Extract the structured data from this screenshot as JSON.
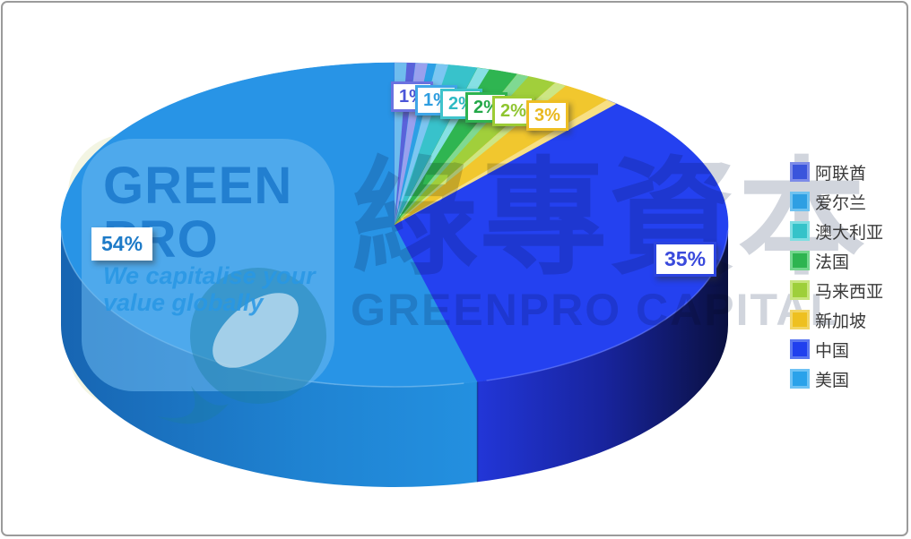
{
  "chart_data": {
    "type": "pie",
    "style": "3d-pie",
    "title": "",
    "unit": "%",
    "start_angle_deg": 0,
    "direction": "clockwise",
    "legend_position": "right",
    "categories": [
      "阿联酋",
      "爱尔兰",
      "澳大利亚",
      "法国",
      "马来西亚",
      "新加坡",
      "中国",
      "美国"
    ],
    "values": [
      1,
      1,
      2,
      2,
      2,
      3,
      35,
      54
    ],
    "labels": [
      "1%",
      "1%",
      "2%",
      "2%",
      "2%",
      "3%",
      "35%",
      "54%"
    ],
    "slices": [
      {
        "name": "阿联酋",
        "value": 1,
        "label": "1%",
        "color": "#5A62DA",
        "light": "#99A0EE",
        "label_text_color": "#4A55D8",
        "label_border_color": "#6A72E0"
      },
      {
        "name": "爱尔兰",
        "value": 1,
        "label": "1%",
        "color": "#2D9FE5",
        "light": "#7CC6F2",
        "label_text_color": "#2D9DE0",
        "label_border_color": "#3FA6E8"
      },
      {
        "name": "澳大利亚",
        "value": 2,
        "label": "2%",
        "color": "#38C2CB",
        "light": "#86E0E4",
        "label_text_color": "#2FBAC4",
        "label_border_color": "#3FC4CC"
      },
      {
        "name": "法国",
        "value": 2,
        "label": "2%",
        "color": "#2FB551",
        "light": "#7FD992",
        "label_text_color": "#23A848",
        "label_border_color": "#2EB450"
      },
      {
        "name": "马来西亚",
        "value": 2,
        "label": "2%",
        "color": "#A1CF3B",
        "light": "#CCE684",
        "label_text_color": "#8FC52F",
        "label_border_color": "#9CCB35"
      },
      {
        "name": "新加坡",
        "value": 3,
        "label": "3%",
        "color": "#F1C72E",
        "light": "#F8E083",
        "label_text_color": "#E9B81E",
        "label_border_color": "#EEBE24"
      },
      {
        "name": "中国",
        "value": 35,
        "label": "35%",
        "color": "#2441F0",
        "light": "#5A77F0",
        "label_text_color": "#3A4ADC",
        "label_border_color": "#2B44E0"
      },
      {
        "name": "美国",
        "value": 54,
        "label": "54%",
        "color": "#2894E6",
        "light": "#6FBCEE",
        "label_text_color": "#1E7BC8",
        "label_border_color": "#FFFFFF"
      }
    ]
  },
  "legend": {
    "items": [
      {
        "label": "阿联酋",
        "color": "#3A55DC",
        "light": "#7D8BE8"
      },
      {
        "label": "爱尔兰",
        "color": "#2E9FE3",
        "light": "#6FC2F0"
      },
      {
        "label": "澳大利亚",
        "color": "#35C3C9",
        "light": "#7FDEE2"
      },
      {
        "label": "法国",
        "color": "#2EB450",
        "light": "#74D68D"
      },
      {
        "label": "马来西亚",
        "color": "#9ECF3A",
        "light": "#C8E57E"
      },
      {
        "label": "新加坡",
        "color": "#EEC020",
        "light": "#F2D565"
      },
      {
        "label": "中国",
        "color": "#2040EE",
        "light": "#5A77F0"
      },
      {
        "label": "美国",
        "color": "#2AA2EA",
        "light": "#6EC2F4"
      }
    ]
  },
  "watermarks": {
    "logo": {
      "line1": "GREEN",
      "line2": "PRO",
      "tagline1": "We capitalise your",
      "tagline2": "value globally"
    },
    "center": {
      "cjk": "綠專資本",
      "latin": "GREENPRO CAPITAL"
    }
  },
  "colors": {
    "frame_border": "#9b9b9b",
    "legend_text": "#3a3a3a",
    "china_side_dark": "#0A1040",
    "usa_side_dark": "#1765B2"
  }
}
